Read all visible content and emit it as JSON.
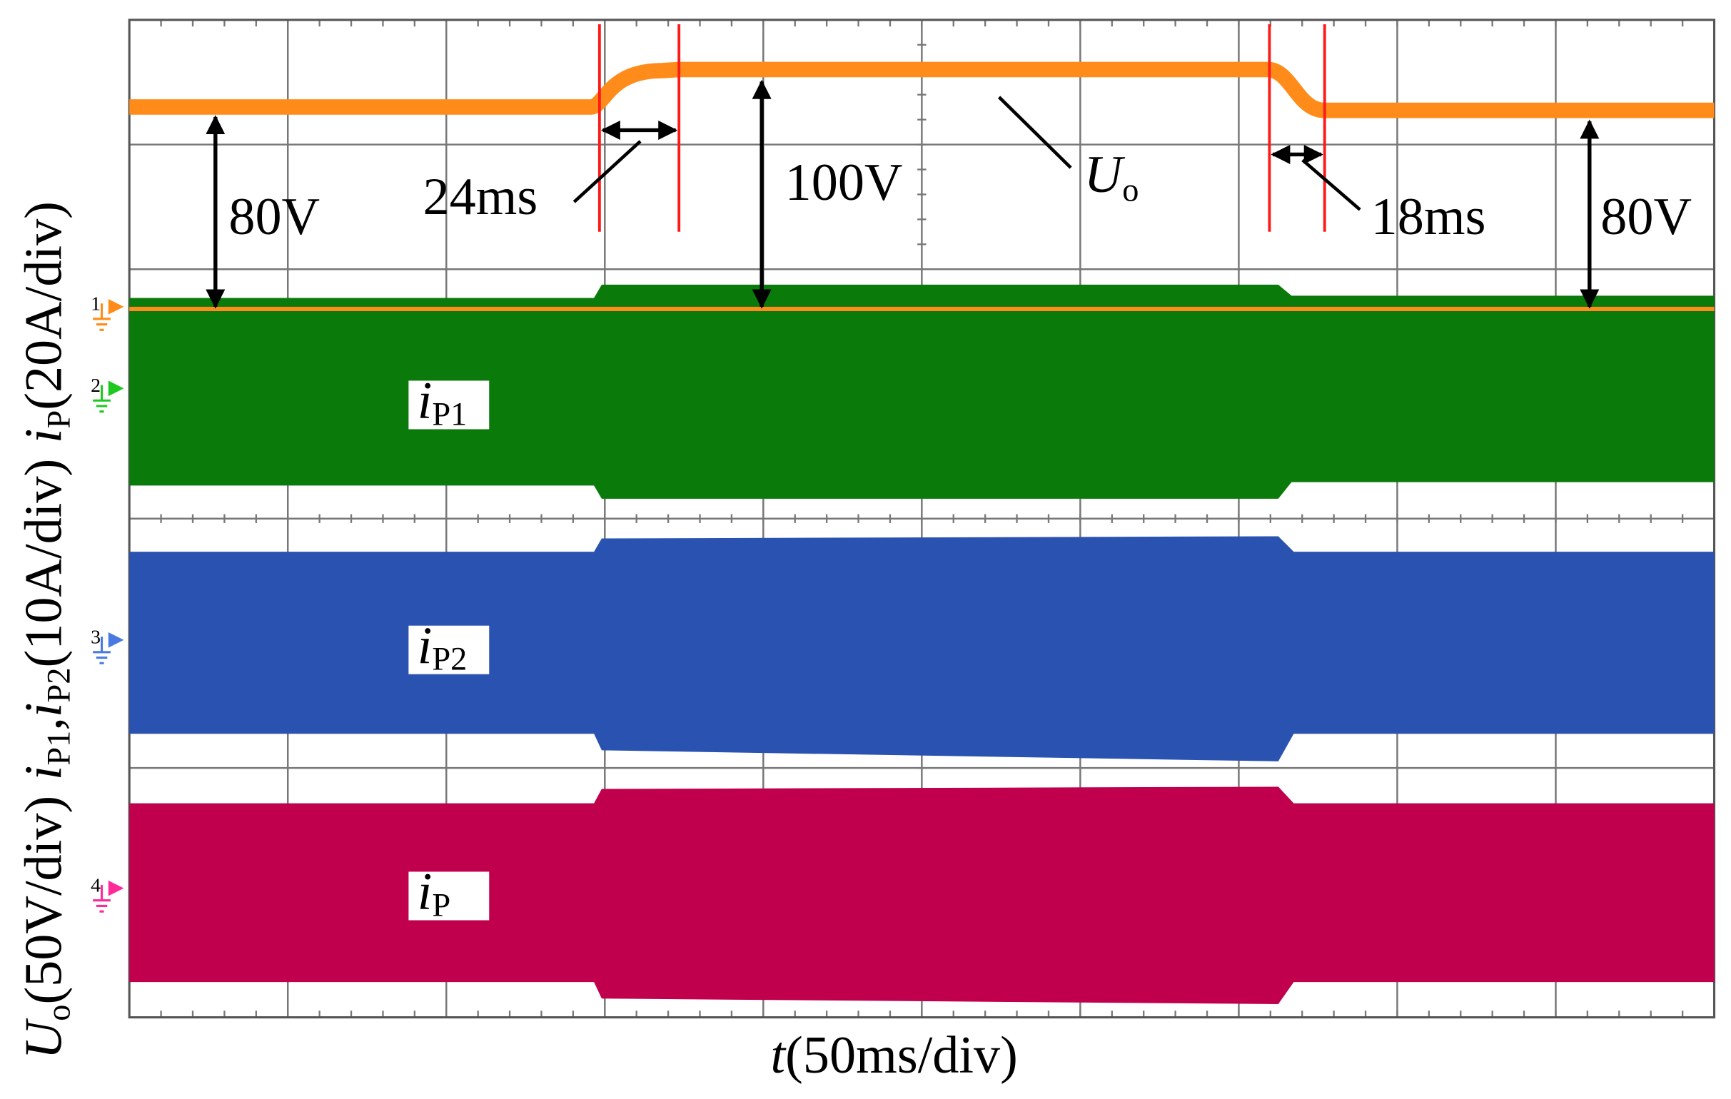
{
  "axes": {
    "y_label": [
      {
        "text": "U",
        "style": "italic"
      },
      {
        "text": "o",
        "style": "sub"
      },
      {
        "text": "(50V/div)",
        "style": "plain"
      },
      {
        "text": "i",
        "style": "italic"
      },
      {
        "text": "P1",
        "style": "sub"
      },
      {
        "text": ",",
        "style": "plain"
      },
      {
        "text": "i",
        "style": "italic"
      },
      {
        "text": "P2",
        "style": "sub"
      },
      {
        "text": "(10A/div)",
        "style": "plain"
      },
      {
        "text": "i",
        "style": "italic"
      },
      {
        "text": "P",
        "style": "sub"
      },
      {
        "text": "(20A/div)",
        "style": "plain"
      }
    ],
    "x_label": [
      {
        "text": "t",
        "style": "italic"
      },
      {
        "text": "(50ms/div)",
        "style": "plain"
      }
    ]
  },
  "annotations": {
    "left_level": "80V",
    "rise_time": "24ms",
    "high_level": "100V",
    "output_voltage": {
      "main": "U",
      "sub": "o"
    },
    "fall_time": "18ms",
    "right_level": "80V"
  },
  "trace_labels": [
    {
      "main": "i",
      "sub": "P1"
    },
    {
      "main": "i",
      "sub": "P2"
    },
    {
      "main": "i",
      "sub": "P"
    }
  ],
  "channels": [
    "1",
    "2",
    "3",
    "4"
  ]
}
